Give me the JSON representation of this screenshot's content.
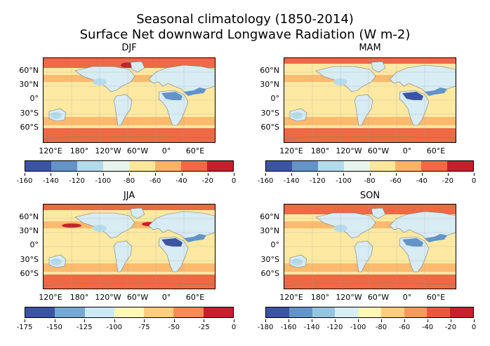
{
  "figure": {
    "title_line1": "Seasonal climatology  (1850-2014)",
    "title_line2": "Surface Net downward Longwave Radiation (W m-2)"
  },
  "lat_labels": [
    "60°N",
    "30°N",
    "0°",
    "30°S",
    "60°S"
  ],
  "lon_labels": [
    "120°E",
    "180°",
    "120°W",
    "60°W",
    "0°",
    "60°E"
  ],
  "panels": [
    {
      "name": "DJF"
    },
    {
      "name": "MAM"
    },
    {
      "name": "JJA"
    },
    {
      "name": "SON"
    }
  ],
  "colorbars": [
    {
      "id": "row1-left",
      "colors": [
        "#3b54a4",
        "#6393c7",
        "#b4dbeb",
        "#e8f5ef",
        "#fee79a",
        "#fbb266",
        "#ee6a45",
        "#c2222b"
      ],
      "ticks": [
        "-160",
        "-140",
        "-120",
        "-100",
        "-80",
        "-60",
        "-40",
        "-20",
        "0"
      ]
    },
    {
      "id": "row1-right",
      "colors": [
        "#3b54a4",
        "#6393c7",
        "#b4dbeb",
        "#e8f5ef",
        "#fee79a",
        "#fbb266",
        "#ee6a45",
        "#c2222b"
      ],
      "ticks": [
        "-160",
        "-140",
        "-120",
        "-100",
        "-80",
        "-60",
        "-40",
        "-20",
        "0"
      ]
    },
    {
      "id": "row2-left",
      "colors": [
        "#3b54a4",
        "#75a9d1",
        "#cde9f3",
        "#fef7b6",
        "#fdce7c",
        "#f48d52",
        "#c2222b"
      ],
      "ticks": [
        "-175",
        "-150",
        "-125",
        "-100",
        "-75",
        "-50",
        "-25",
        "0"
      ]
    },
    {
      "id": "row2-right",
      "colors": [
        "#3b54a4",
        "#6393c7",
        "#96c4de",
        "#d6eef4",
        "#fef7b6",
        "#fdce7c",
        "#f59a5a",
        "#e45a3b",
        "#c2222b"
      ],
      "ticks": [
        "-180",
        "-160",
        "-140",
        "-120",
        "-100",
        "-80",
        "-60",
        "-40",
        "-20",
        "0"
      ]
    }
  ],
  "colors": {
    "ocean_warm": "#fde9a2",
    "ocean_band": "#fbb266",
    "polar": "#ee6a45",
    "dark_red": "#c2222b",
    "desert": "#6393c7",
    "desert_core": "#3b54a4",
    "land_light": "#e8f5ef",
    "land_mid": "#b4dbeb",
    "coast": "#7a7a7a"
  }
}
